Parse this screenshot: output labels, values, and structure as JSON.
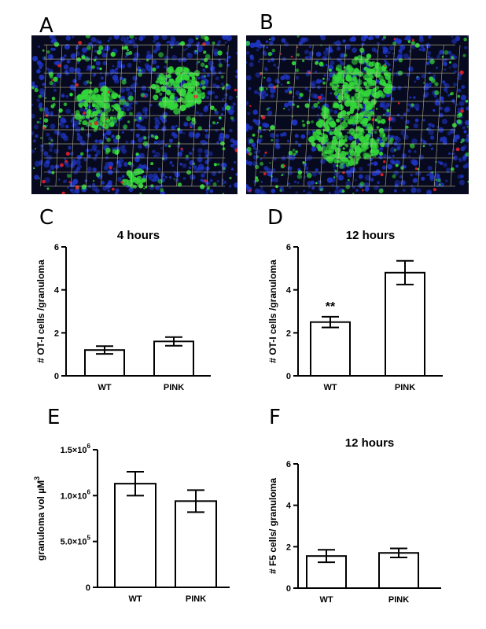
{
  "panels": {
    "A": "A",
    "B": "B",
    "C": "C",
    "D": "D",
    "E": "E",
    "F": "F"
  },
  "colors": {
    "bar_fill": "#ffffff",
    "stroke": "#000000",
    "nuclei": "#1f36c8",
    "cells": "#33d63a",
    "marker": "#e0202a",
    "grid": "#c9c9a0"
  },
  "chart_data": [
    {
      "panel": "C",
      "type": "bar",
      "title": "4 hours",
      "ylabel": "# OT-I cells /granuloma",
      "categories": [
        "WT",
        "PINK"
      ],
      "values": [
        1.2,
        1.6
      ],
      "errors": [
        0.18,
        0.2
      ],
      "ylim": [
        0,
        6
      ],
      "yticks": [
        "0",
        "2",
        "4",
        "6"
      ],
      "annotations": []
    },
    {
      "panel": "D",
      "type": "bar",
      "title": "12 hours",
      "ylabel": "# OT-I cells /granuloma",
      "categories": [
        "WT",
        "PINK"
      ],
      "values": [
        2.5,
        4.8
      ],
      "errors": [
        0.25,
        0.55
      ],
      "ylim": [
        0,
        6
      ],
      "yticks": [
        "0",
        "2",
        "4",
        "6"
      ],
      "annotations": [
        "**"
      ]
    },
    {
      "panel": "E",
      "type": "bar",
      "title": "",
      "ylabel": "granuloma vol µM",
      "ylabel_sup": "3",
      "categories": [
        "WT",
        "PINK"
      ],
      "values": [
        1130000,
        940000
      ],
      "errors": [
        130000,
        120000
      ],
      "ylim": [
        0,
        1500000
      ],
      "yticks": [
        "0",
        "5.0×10",
        "1.0×10",
        "1.5×10"
      ],
      "ytick_sups": [
        "",
        "5",
        "6",
        "6"
      ],
      "annotations": []
    },
    {
      "panel": "F",
      "type": "bar",
      "title": "12 hours",
      "ylabel": "# F5 cells/ granuloma",
      "categories": [
        "WT",
        "PINK"
      ],
      "values": [
        1.55,
        1.7
      ],
      "errors": [
        0.3,
        0.22
      ],
      "ylim": [
        0,
        6
      ],
      "yticks": [
        "0",
        "2",
        "4",
        "6"
      ],
      "annotations": []
    }
  ]
}
